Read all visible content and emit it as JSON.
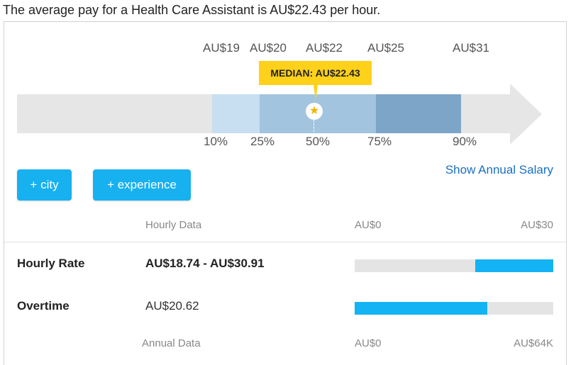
{
  "headline": "The average pay for a Health Care Assistant is AU$22.43 per hour.",
  "distribution": {
    "top_labels": [
      "AU$19",
      "AU$20",
      "AU$22",
      "AU$25",
      "AU$31"
    ],
    "bottom_labels": [
      "10%",
      "25%",
      "50%",
      "75%",
      "90%"
    ],
    "median_label": "MEDIAN: AU$22.43",
    "colors": {
      "track": "#e6e6e6",
      "band_10_25": "#c7dff0",
      "band_25_75": "#a2c4de",
      "band_75_90": "#7ca5c7",
      "median": "#ffd11a"
    }
  },
  "buttons": {
    "city": "+ city",
    "experience": "+ experience"
  },
  "annual_link": "Show Annual Salary",
  "hourly_header": {
    "label": "Hourly Data",
    "min": "AU$0",
    "max": "AU$30"
  },
  "rows": [
    {
      "label": "Hourly Rate",
      "value": "AU$18.74 - AU$30.91",
      "bar_start_frac": 0.607,
      "bar_end_frac": 1.0
    },
    {
      "label": "Overtime",
      "value": "AU$20.62",
      "bar_start_frac": 0.0,
      "bar_end_frac": 0.668
    }
  ],
  "annual_header": {
    "label": "Annual Data",
    "min": "AU$0",
    "max": "AU$64K"
  }
}
